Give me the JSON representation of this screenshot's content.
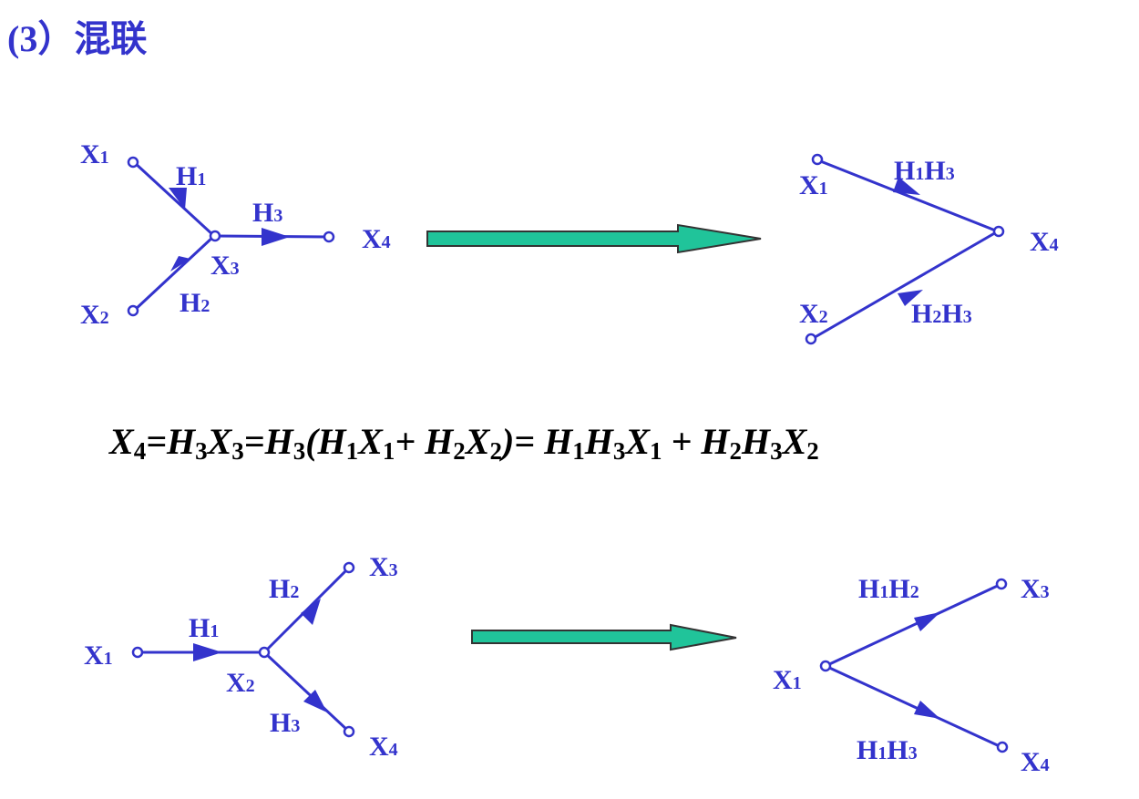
{
  "title": "(3）混联",
  "colors": {
    "line": "#3333cc",
    "arrow_fill": "#20c49a",
    "arrow_stroke": "#333333",
    "equation": "#000000"
  },
  "diagram1": {
    "left": {
      "x1": "X1",
      "x2": "X2",
      "x3": "X3",
      "x4": "X4",
      "h1": "H1",
      "h2": "H2",
      "h3": "H3"
    },
    "right": {
      "x1": "X1",
      "x2": "X2",
      "x4": "X4",
      "h1h3": "H1H3",
      "h2h3": "H2H3"
    }
  },
  "equation": "X4=H3X3=H3(H1X1+ H2X2)= H1H3X1 + H2H3X2",
  "diagram2": {
    "left": {
      "x1": "X1",
      "x2": "X2",
      "x3": "X3",
      "x4": "X4",
      "h1": "H1",
      "h2": "H2",
      "h3": "H3"
    },
    "right": {
      "x1": "X1",
      "x3": "X3",
      "x4": "X4",
      "h1h2": "H1H2",
      "h1h3": "H1H3"
    }
  }
}
